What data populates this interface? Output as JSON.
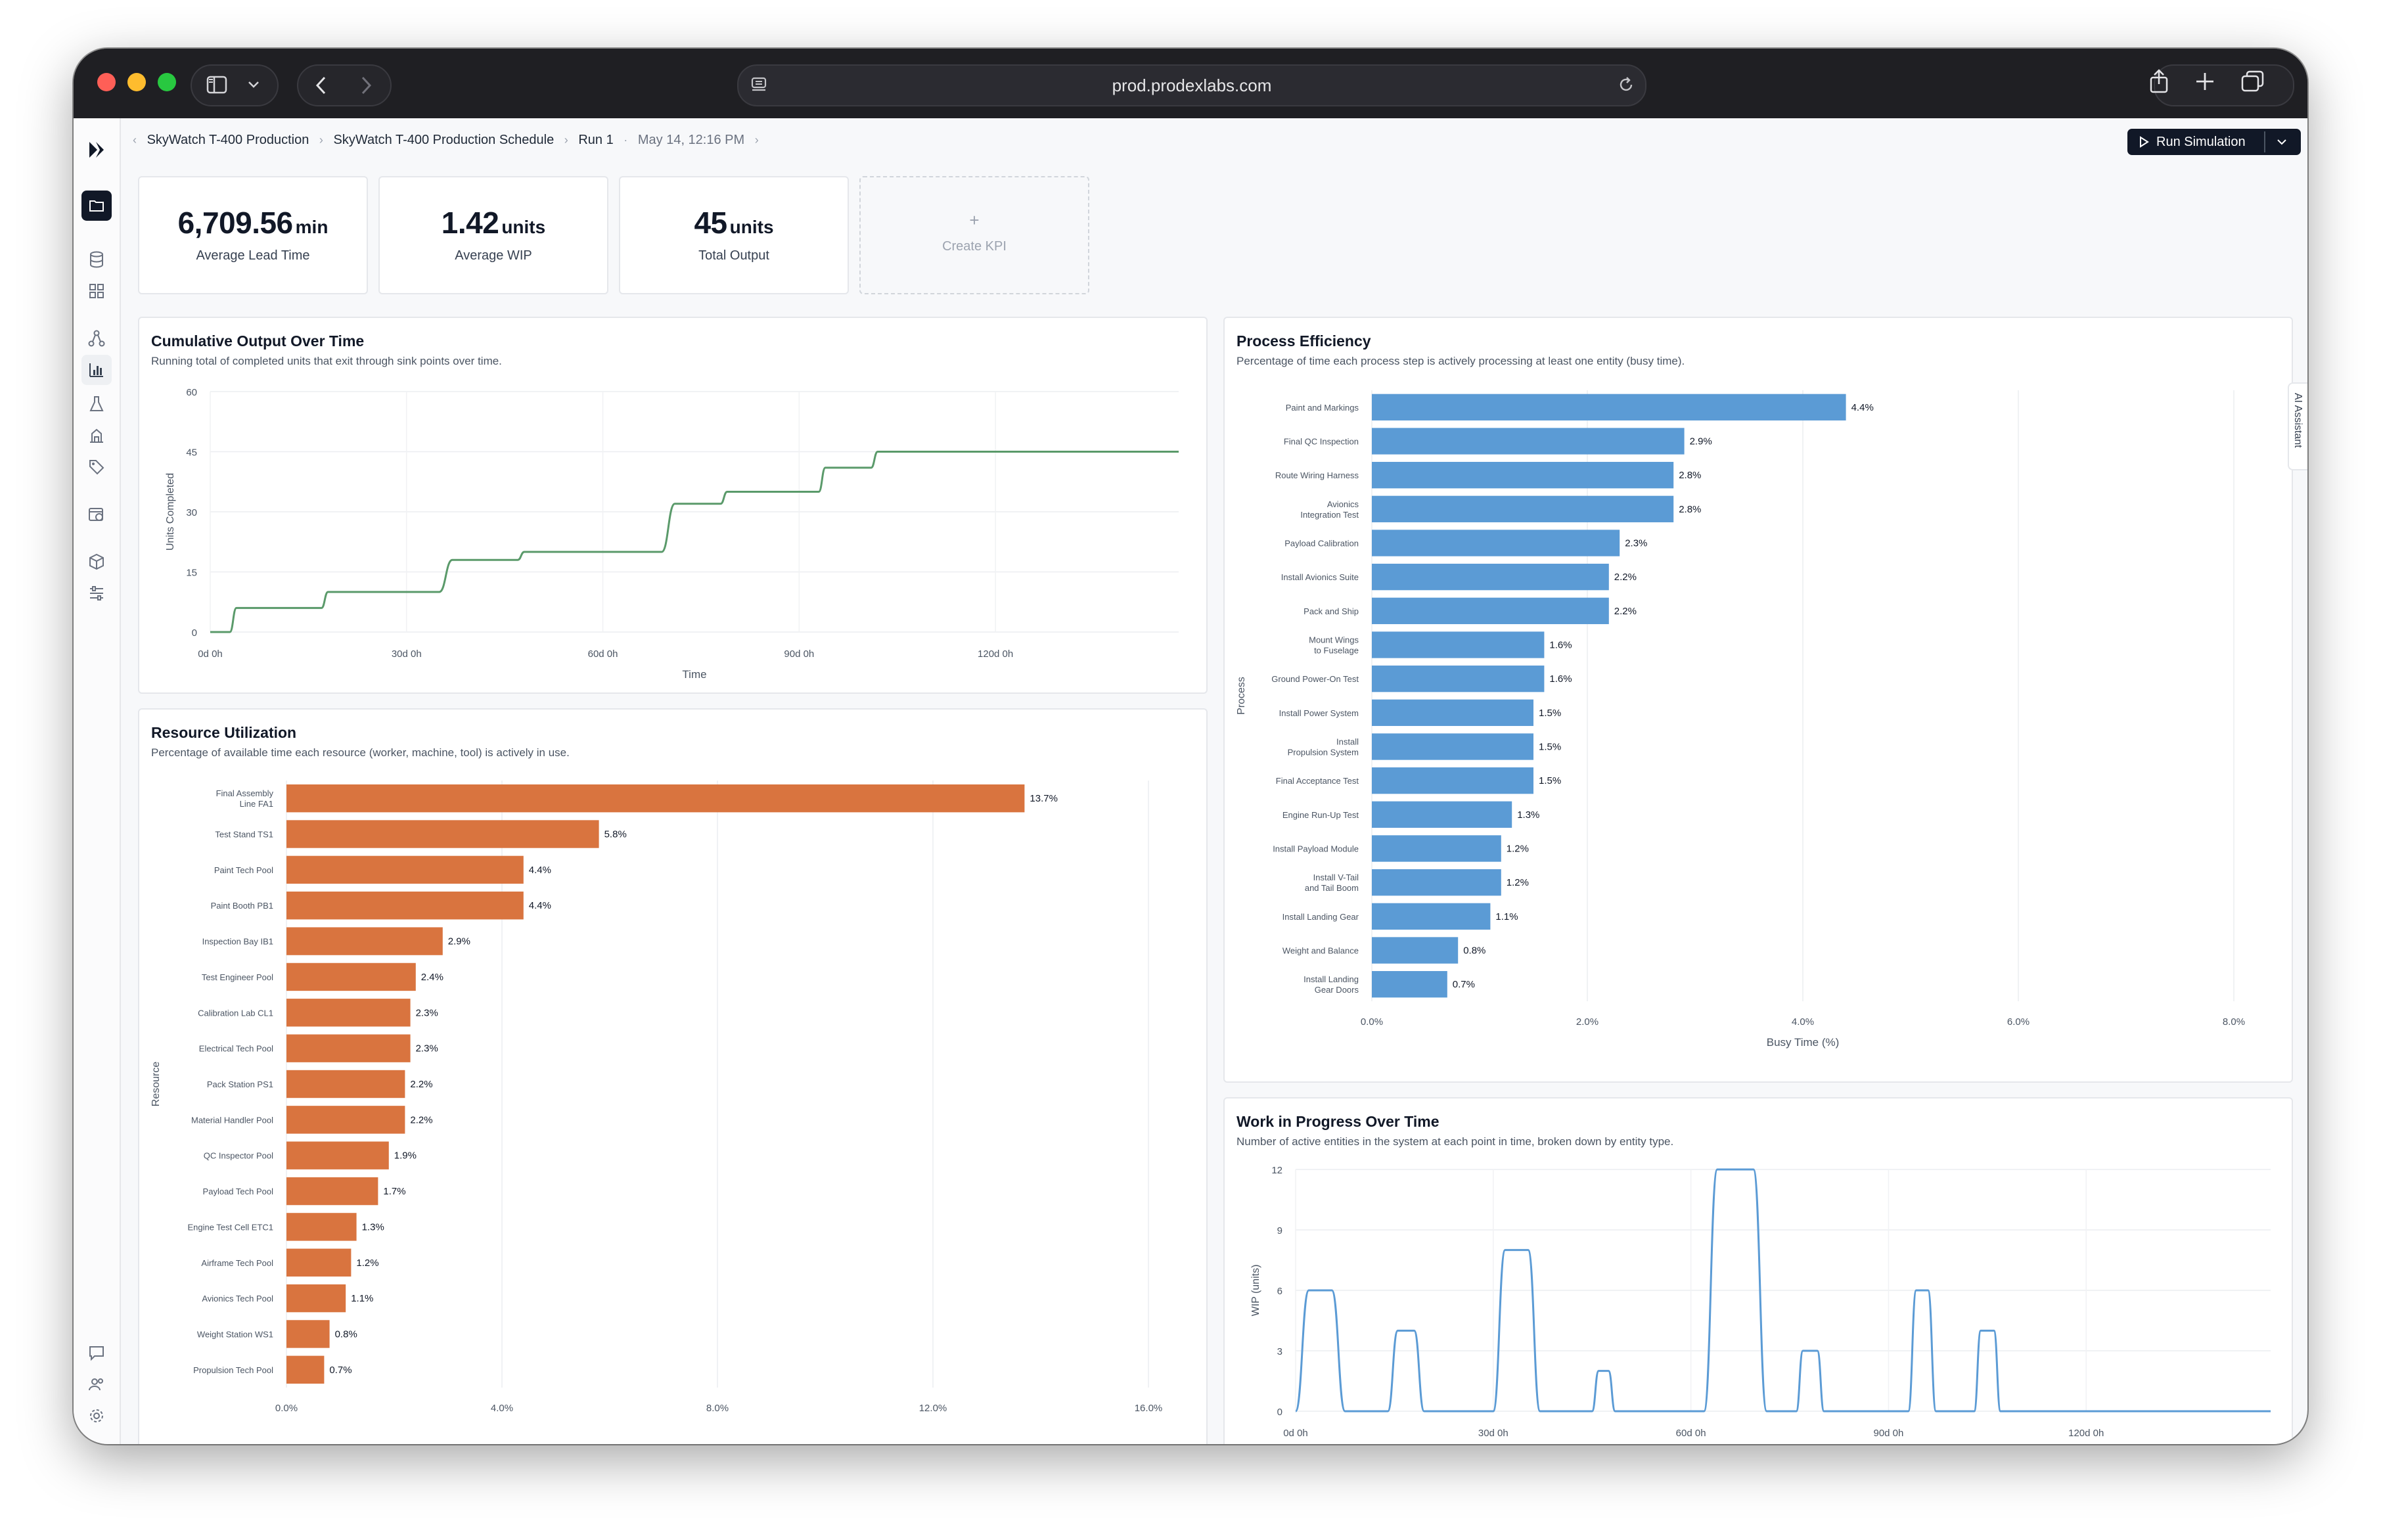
{
  "browser": {
    "url": "prod.prodexlabs.com"
  },
  "breadcrumb": {
    "items": [
      "SkyWatch T-400 Production",
      "SkyWatch T-400 Production Schedule",
      "Run 1"
    ],
    "timestamp": "May 14, 12:16 PM"
  },
  "toolbar": {
    "run_label": "Run Simulation"
  },
  "ai_assistant_label": "AI Assistant",
  "kpis": [
    {
      "value": "6,709.56",
      "unit": "min",
      "label": "Average Lead Time"
    },
    {
      "value": "1.42",
      "unit": "units",
      "label": "Average WIP"
    },
    {
      "value": "45",
      "unit": "units",
      "label": "Total Output"
    }
  ],
  "create_kpi": {
    "plus": "+",
    "label": "Create KPI"
  },
  "colors": {
    "output_line": "#5a9a6a",
    "resource_bar": "#d9743f",
    "process_bar": "#5b9bd5",
    "wip_line": "#5b9bd5"
  },
  "chart_data": [
    {
      "id": "cumulative",
      "type": "line",
      "title": "Cumulative Output Over Time",
      "subtitle": "Running total of completed units that exit through sink points over time.",
      "xlabel": "Time",
      "ylabel": "Units Completed",
      "xlim": [
        0,
        148
      ],
      "ylim": [
        0,
        60
      ],
      "xticks": [
        0,
        30,
        60,
        90,
        120
      ],
      "xtick_labels": [
        "0d 0h",
        "30d 0h",
        "60d 0h",
        "90d 0h",
        "120d 0h"
      ],
      "yticks": [
        0,
        15,
        30,
        45,
        60
      ],
      "grid": true,
      "steps": [
        [
          0,
          0
        ],
        [
          3,
          0
        ],
        [
          4,
          6
        ],
        [
          17,
          6
        ],
        [
          18,
          10
        ],
        [
          35,
          10
        ],
        [
          37,
          18
        ],
        [
          47,
          18
        ],
        [
          48,
          20
        ],
        [
          69,
          20
        ],
        [
          71,
          32
        ],
        [
          78,
          32
        ],
        [
          79,
          35
        ],
        [
          93,
          35
        ],
        [
          94,
          41
        ],
        [
          101,
          41
        ],
        [
          102,
          45
        ],
        [
          148,
          45
        ]
      ]
    },
    {
      "id": "resource",
      "type": "bar",
      "orientation": "horizontal",
      "title": "Resource Utilization",
      "subtitle": "Percentage of available time each resource (worker, machine, tool) is actively in use.",
      "xlabel": "",
      "ylabel": "Resource",
      "xlim": [
        0,
        16
      ],
      "xticks": [
        0,
        4,
        8,
        12,
        16
      ],
      "xtick_labels": [
        "0.0%",
        "4.0%",
        "8.0%",
        "12.0%",
        "16.0%"
      ],
      "categories": [
        [
          "Final Assembly",
          "Line FA1"
        ],
        [
          "Test Stand TS1"
        ],
        [
          "Paint Tech Pool"
        ],
        [
          "Paint Booth PB1"
        ],
        [
          "Inspection Bay IB1"
        ],
        [
          "Test Engineer Pool"
        ],
        [
          "Calibration Lab CL1"
        ],
        [
          "Electrical Tech Pool"
        ],
        [
          "Pack Station PS1"
        ],
        [
          "Material Handler Pool"
        ],
        [
          "QC Inspector Pool"
        ],
        [
          "Payload Tech Pool"
        ],
        [
          "Engine Test Cell ETC1"
        ],
        [
          "Airframe Tech Pool"
        ],
        [
          "Avionics Tech Pool"
        ],
        [
          "Weight Station WS1"
        ],
        [
          "Propulsion Tech Pool"
        ]
      ],
      "values": [
        13.7,
        5.8,
        4.4,
        4.4,
        2.9,
        2.4,
        2.3,
        2.3,
        2.2,
        2.2,
        1.9,
        1.7,
        1.3,
        1.2,
        1.1,
        0.8,
        0.7
      ],
      "value_labels": [
        "13.7%",
        "5.8%",
        "4.4%",
        "4.4%",
        "2.9%",
        "2.4%",
        "2.3%",
        "2.3%",
        "2.2%",
        "2.2%",
        "1.9%",
        "1.7%",
        "1.3%",
        "1.2%",
        "1.1%",
        "0.8%",
        "0.7%"
      ]
    },
    {
      "id": "process",
      "type": "bar",
      "orientation": "horizontal",
      "title": "Process Efficiency",
      "subtitle": "Percentage of time each process step is actively processing at least one entity (busy time).",
      "xlabel": "Busy Time (%)",
      "ylabel": "Process",
      "xlim": [
        0,
        8
      ],
      "xticks": [
        0,
        2,
        4,
        6,
        8
      ],
      "xtick_labels": [
        "0.0%",
        "2.0%",
        "4.0%",
        "6.0%",
        "8.0%"
      ],
      "categories": [
        [
          "Paint and Markings"
        ],
        [
          "Final QC Inspection"
        ],
        [
          "Route Wiring Harness"
        ],
        [
          "Avionics",
          "Integration Test"
        ],
        [
          "Payload Calibration"
        ],
        [
          "Install Avionics Suite"
        ],
        [
          "Pack and Ship"
        ],
        [
          "Mount Wings",
          "to Fuselage"
        ],
        [
          "Ground Power-On Test"
        ],
        [
          "Install Power System"
        ],
        [
          "Install",
          "Propulsion System"
        ],
        [
          "Final Acceptance Test"
        ],
        [
          "Engine Run-Up Test"
        ],
        [
          "Install Payload Module"
        ],
        [
          "Install V-Tail",
          "and Tail Boom"
        ],
        [
          "Install Landing Gear"
        ],
        [
          "Weight and Balance"
        ],
        [
          "Install Landing",
          "Gear Doors"
        ]
      ],
      "values": [
        4.4,
        2.9,
        2.8,
        2.8,
        2.3,
        2.2,
        2.2,
        1.6,
        1.6,
        1.5,
        1.5,
        1.5,
        1.3,
        1.2,
        1.2,
        1.1,
        0.8,
        0.7
      ],
      "value_labels": [
        "4.4%",
        "2.9%",
        "2.8%",
        "2.8%",
        "2.3%",
        "2.2%",
        "2.2%",
        "1.6%",
        "1.6%",
        "1.5%",
        "1.5%",
        "1.5%",
        "1.3%",
        "1.2%",
        "1.2%",
        "1.1%",
        "0.8%",
        "0.7%"
      ]
    },
    {
      "id": "wip",
      "type": "line",
      "title": "Work in Progress Over Time",
      "subtitle": "Number of active entities in the system at each point in time, broken down by entity type.",
      "xlabel": "",
      "ylabel": "WIP (units)",
      "xlim": [
        0,
        148
      ],
      "ylim": [
        0,
        12
      ],
      "xticks": [
        0,
        30,
        60,
        90,
        120
      ],
      "xtick_labels": [
        "0d 0h",
        "30d 0h",
        "60d 0h",
        "90d 0h",
        "120d 0h"
      ],
      "yticks": [
        0,
        3,
        6,
        9,
        12
      ],
      "grid": true,
      "pulses": [
        [
          0,
          2,
          3.5,
          6
        ],
        [
          14,
          1.5,
          2.5,
          4
        ],
        [
          30,
          1.8,
          3.5,
          8
        ],
        [
          45,
          1,
          1.5,
          2
        ],
        [
          62,
          2,
          5.5,
          12
        ],
        [
          76,
          1,
          2.2,
          3
        ],
        [
          93,
          1.2,
          1.8,
          6
        ],
        [
          103,
          1,
          2,
          4
        ]
      ]
    }
  ]
}
